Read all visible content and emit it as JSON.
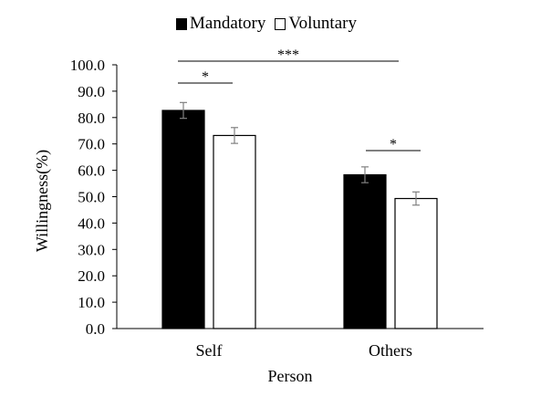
{
  "chart_data": {
    "type": "bar",
    "categories": [
      "Self",
      "Others"
    ],
    "series": [
      {
        "name": "Mandatory",
        "values": [
          82.7,
          58.3
        ],
        "errors": [
          3.0,
          3.0
        ],
        "color": "#000000"
      },
      {
        "name": "Voluntary",
        "values": [
          73.2,
          49.3
        ],
        "errors": [
          3.0,
          2.5
        ],
        "color": "#ffffff"
      }
    ],
    "xlabel": "Person",
    "ylabel": "Willingness(%)",
    "ylim": [
      0,
      100
    ],
    "yticks": [
      "0.0",
      "10.0",
      "20.0",
      "30.0",
      "40.0",
      "50.0",
      "60.0",
      "70.0",
      "80.0",
      "90.0",
      "100.0"
    ],
    "legend_position": "top-center",
    "grid": false,
    "annotations": [
      {
        "text": "*",
        "between": "Self Mandatory vs Self Voluntary"
      },
      {
        "text": "*",
        "between": "Others Mandatory vs Others Voluntary"
      },
      {
        "text": "***",
        "between": "Self vs Others"
      }
    ]
  }
}
